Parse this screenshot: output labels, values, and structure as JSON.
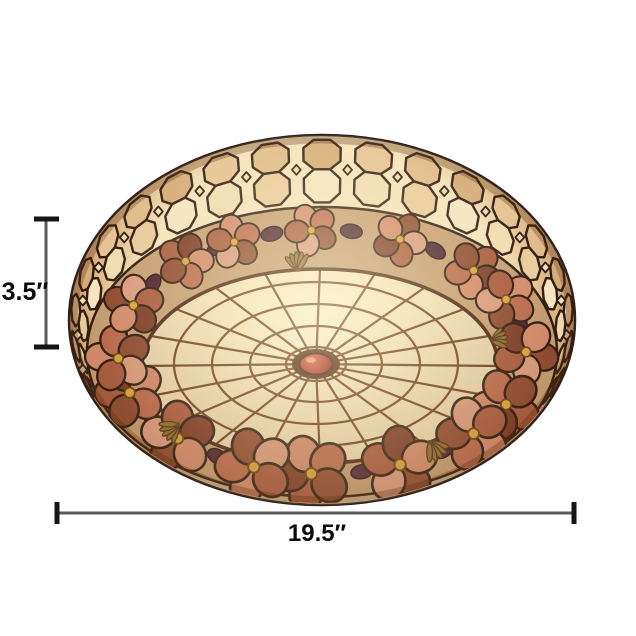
{
  "annotations": {
    "height_label": "3.5″",
    "width_label": "19.5″",
    "line_color": "#58585a",
    "cap_color": "#151515",
    "text_color": "#0b0b0b"
  },
  "artwork": {
    "background": "#ffffff",
    "palette": {
      "leading": "#2f1b10",
      "rim_outer": "#c9996a",
      "rim_mid": "#e3bf8f",
      "rim_inner": "#f6e3bd",
      "band_cells_outer": [
        "#e0ba8a",
        "#d6ac7a",
        "#e6c294"
      ],
      "band_cells_inner": [
        "#f2dcb2",
        "#e9cb9c",
        "#f6e4c0"
      ],
      "diamond": "#f3ddb2",
      "ring_base": "#c59c72",
      "flower_gap": "#4a2130",
      "petal_colors": [
        "#d28a6b",
        "#b96a4c",
        "#8e4a30",
        "#d99a7d",
        "#a85a3e",
        "#7c3a26"
      ],
      "flower_center": "#d9a43a",
      "web_glow": "#fff6d6",
      "web_mid": "#f3e3bb",
      "web_edge": "#e2cda6",
      "web_line": "#6f3e1d",
      "knob_red": "#b5372a",
      "shell_bronze": "#8f6b2e"
    }
  }
}
